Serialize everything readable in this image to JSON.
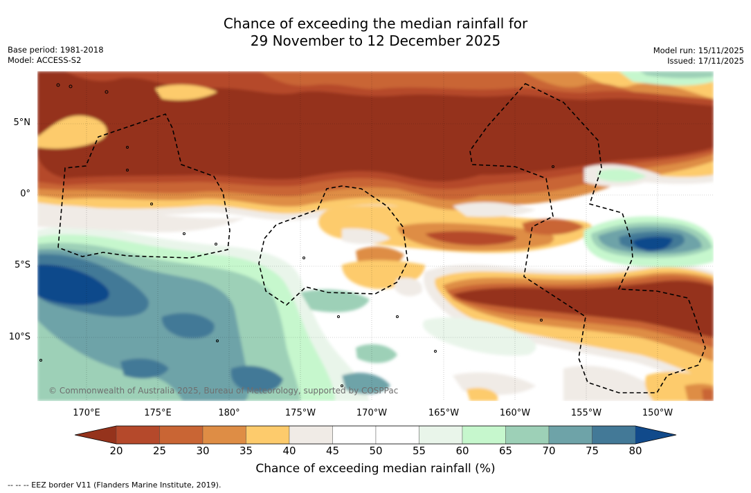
{
  "title_line1": "Chance of exceeding the median rainfall for",
  "title_line2": "29 November to 12 December 2025",
  "base_period": "Base period: 1981-2018",
  "model": "Model: ACCESS-S2",
  "model_run": "Model run: 15/11/2025",
  "issued": "Issued: 17/11/2025",
  "copyright": "© Commonwealth of Australia 2025, Bureau of Meteorology, supported by COSPPac",
  "lat_labels": [
    "5°N",
    "0°",
    "5°S",
    "10°S"
  ],
  "lon_labels": [
    "170°E",
    "175°E",
    "180°",
    "175°W",
    "170°W",
    "165°W",
    "160°W",
    "155°W",
    "150°W"
  ],
  "colorbar": {
    "title": "Chance of exceeding median rainfall (%)",
    "ticks": [
      "20",
      "25",
      "30",
      "35",
      "40",
      "45",
      "50",
      "55",
      "60",
      "65",
      "70",
      "75",
      "80"
    ],
    "colors": [
      "#95331c",
      "#b5492b",
      "#c96534",
      "#de8d45",
      "#fdcb6c",
      "#f0ebe6",
      "#ffffff",
      "#ffffff",
      "#e9f5ea",
      "#c6f7cd",
      "#9dd0b7",
      "#6ea3a8",
      "#437997",
      "#114a8b"
    ]
  },
  "legend_footer": "-- -- -- EEZ border V11 (Flanders Marine Institute, 2019)."
}
